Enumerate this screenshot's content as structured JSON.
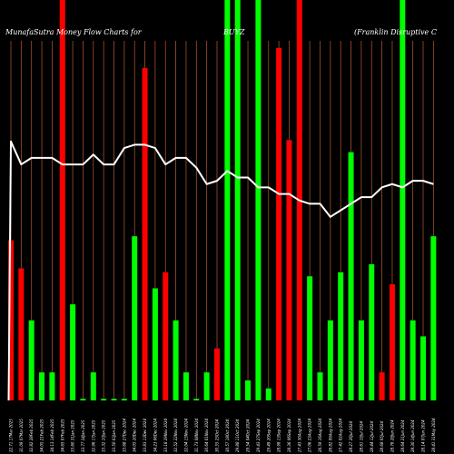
{
  "header": {
    "left": "MunafaSutra Money Flow Charts for",
    "center": "BUYZ",
    "right": "(Franklin Disruptive C"
  },
  "chart_data": {
    "type": "bar",
    "title": "MunafaSutra Money Flow Charts for BUYZ",
    "ylim": [
      0,
      100
    ],
    "grid": "vertical lines",
    "colors": {
      "up": "#00ff00",
      "down": "#ff0000",
      "line": "#ffffff",
      "grid": "#a0522d",
      "background": "#000000"
    },
    "categories": [
      "22.71 17Mar 2025",
      "31.09 07Mar 2025",
      "32.82 28Feb 2025",
      "34.05 21Feb 2025",
      "34.13 14Feb 2025",
      "34.65 07Feb 2025",
      "33.60 31Jan 2025",
      "33.77 24Jan 2025",
      "32.96 17Jan 2025",
      "33.32 10Jan 2025",
      "33.50 03Jan 2025",
      "33.68 27Dec 2024",
      "34.05 20Dec 2024",
      "33.83 13Dec 2024",
      "34.23 06Dec 2024",
      "33.18 29Nov 2024",
      "32.52 22Nov 2024",
      "32.04 15Nov 2024",
      "31.73 08Nov 2024",
      "30.64 01Nov 2024",
      "30.55 25Oct 2024",
      "30.57 18Oct 2024",
      "29.88 11Oct 2024",
      "29.54 04Oct 2024",
      "29.43 27Sep 2024",
      "29.49 20Sep 2024",
      "28.98 13Sep 2024",
      "28.36 06Sep 2024",
      "27.43 30Aug 2024",
      "27.06 23Aug 2024",
      "26.59 16Aug 2024",
      "26.82 09Aug 2024",
      "27.42 02Aug 2024",
      "28.27 26Jul 2024",
      "28.61 19Jul 2024",
      "28.44 12Jul 2024",
      "28.68 05Jul 2024",
      "28.76 28Jun 2024",
      "28.64 21Jun 2024",
      "28.30 14Jun 2024",
      "28.14 07Jun 2024",
      "28.41 31May 2024"
    ],
    "directions": [
      "down",
      "down",
      "up",
      "up",
      "up",
      "down",
      "up",
      "up",
      "up",
      "up",
      "up",
      "up",
      "up",
      "down",
      "up",
      "down",
      "up",
      "up",
      "up",
      "up",
      "down",
      "up",
      "up",
      "up",
      "up",
      "up",
      "down",
      "down",
      "down",
      "up",
      "up",
      "up",
      "up",
      "up",
      "up",
      "up",
      "down",
      "down",
      "up",
      "up",
      "up",
      "up"
    ],
    "values": [
      40,
      33,
      20,
      7,
      7,
      100,
      24,
      0.4,
      7,
      0.4,
      0.4,
      0.4,
      41,
      83,
      28,
      32,
      20,
      7,
      0.4,
      7,
      13,
      100,
      100,
      5,
      100,
      3,
      88,
      65,
      100,
      31,
      7,
      20,
      32,
      62,
      20,
      34,
      7,
      29,
      100,
      20,
      16,
      41
    ],
    "line": [
      79,
      72,
      74,
      74,
      74,
      72,
      72,
      72,
      75,
      72,
      72,
      77,
      78,
      78,
      77,
      72,
      74,
      74,
      71,
      66,
      67,
      70,
      68,
      68,
      65,
      65,
      63,
      63,
      61,
      60,
      60,
      56,
      58,
      60,
      62,
      62,
      65,
      66,
      65,
      67,
      67,
      66
    ],
    "line_start": 0
  }
}
